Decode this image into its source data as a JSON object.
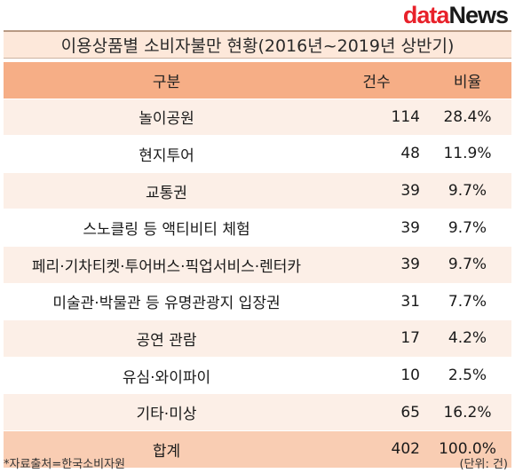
{
  "logo": {
    "part1": "data",
    "part2": "News"
  },
  "title": "이용상품별 소비자불만 현황(2016년~2019년 상반기)",
  "headers": {
    "item": "구분",
    "count": "건수",
    "ratio": "비율"
  },
  "rows": [
    {
      "item": "놀이공원",
      "count": "114",
      "ratio": "28.4%"
    },
    {
      "item": "현지투어",
      "count": "48",
      "ratio": "11.9%"
    },
    {
      "item": "교통권",
      "count": "39",
      "ratio": "9.7%"
    },
    {
      "item": "스노클링 등 액티비티 체험",
      "count": "39",
      "ratio": "9.7%"
    },
    {
      "item": "페리·기차티켓·투어버스·픽업서비스·렌터카",
      "count": "39",
      "ratio": "9.7%"
    },
    {
      "item": "미술관·박물관 등 유명관광지 입장권",
      "count": "31",
      "ratio": "7.7%"
    },
    {
      "item": "공연 관람",
      "count": "17",
      "ratio": "4.2%"
    },
    {
      "item": "유심·와이파이",
      "count": "10",
      "ratio": "2.5%"
    },
    {
      "item": "기타·미상",
      "count": "65",
      "ratio": "16.2%"
    },
    {
      "item": "합계",
      "count": "402",
      "ratio": "100.0%"
    }
  ],
  "footer": {
    "source": "*자료출처=한국소비자원",
    "unit": "(단위: 건)"
  }
}
